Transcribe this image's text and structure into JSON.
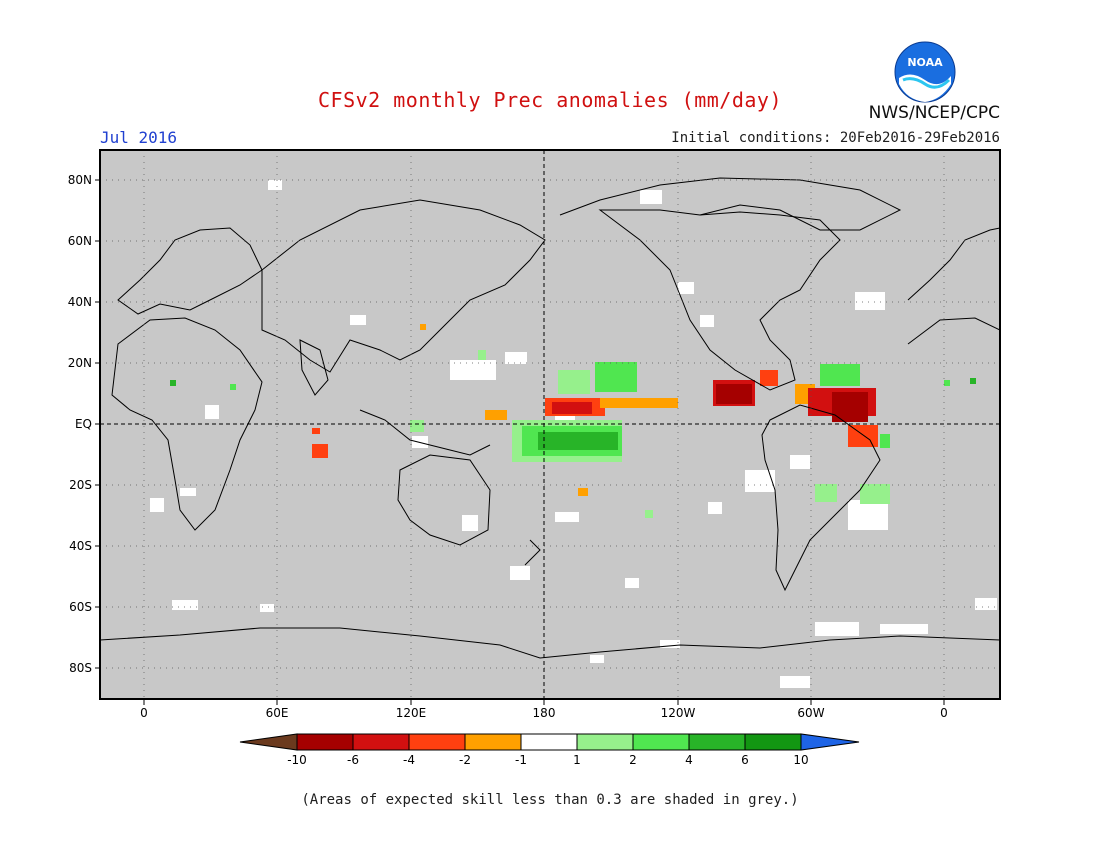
{
  "title": "CFSv2 monthly Prec anomalies (mm/day)",
  "month_label": "Jul 2016",
  "initial_conditions": "Initial conditions: 20Feb2016-29Feb2016",
  "agency": "NWS/NCEP/CPC",
  "logo_text": "NOAA",
  "footnote": "(Areas of expected skill less than 0.3 are shaded in grey.)",
  "colors": {
    "skill_mask_grey": "#c8c8c8",
    "map_frame": "#000000",
    "title_red": "#d01010",
    "month_blue": "#2040d0"
  },
  "map": {
    "projection": "cylindrical equidistant, centered on 180",
    "lat_labels": [
      "80N",
      "60N",
      "40N",
      "20N",
      "EQ",
      "20S",
      "40S",
      "60S",
      "80S"
    ],
    "lon_labels": [
      "0",
      "60E",
      "120E",
      "180",
      "120W",
      "60W",
      "0"
    ],
    "reference_lines": [
      "EQ",
      "180"
    ]
  },
  "legend": {
    "type": "color_scale",
    "tick_labels": [
      "-10",
      "-6",
      "-4",
      "-2",
      "-1",
      "1",
      "2",
      "4",
      "6",
      "10"
    ],
    "bins": [
      {
        "color": "#6b3a1e"
      },
      {
        "color": "#a50000"
      },
      {
        "color": "#d21010"
      },
      {
        "color": "#ff4010"
      },
      {
        "color": "#ffa000"
      },
      {
        "color": "#ffffff"
      },
      {
        "color": "#96f08c"
      },
      {
        "color": "#50e650"
      },
      {
        "color": "#28b428"
      },
      {
        "color": "#129612"
      },
      {
        "color": "#1e64e6"
      }
    ]
  }
}
